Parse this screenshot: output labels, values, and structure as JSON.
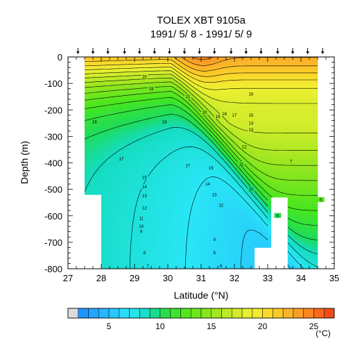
{
  "chart_data": {
    "type": "heatmap",
    "title": "TOLEX XBT 9105a",
    "subtitle": "1991/ 5/ 8 - 1991/ 5/ 9",
    "xlabel": "Latitude (°N)",
    "ylabel": "Depth (m)",
    "xlim": [
      27,
      35
    ],
    "ylim": [
      -800,
      0
    ],
    "x_ticks": [
      27,
      28,
      29,
      30,
      31,
      32,
      33,
      34,
      35
    ],
    "y_ticks": [
      0,
      -100,
      -200,
      -300,
      -400,
      -500,
      -600,
      -700,
      -800
    ],
    "x_tick_labels": [
      "27",
      "28",
      "29",
      "30",
      "31",
      "32",
      "33",
      "34",
      "35"
    ],
    "y_tick_labels": [
      "0",
      "-100",
      "-200",
      "-300",
      "-400",
      "-500",
      "-600",
      "-700",
      "-800"
    ],
    "station_latitudes": [
      27.3,
      27.75,
      28.2,
      28.7,
      29.15,
      29.6,
      30.05,
      30.5,
      30.95,
      31.4,
      31.9,
      32.35,
      32.8,
      33.3,
      33.75,
      34.2,
      34.65
    ],
    "colorbar": {
      "unit": "(°C)",
      "min": 2,
      "max": 27,
      "tick_values": [
        5,
        10,
        15,
        20,
        25
      ],
      "tick_labels": [
        "5",
        "10",
        "15",
        "20",
        "25"
      ],
      "missing_color": "#dcdcdc"
    },
    "contour_labels": [
      {
        "lat": 29.3,
        "depth": -75,
        "label": "20"
      },
      {
        "lat": 29.5,
        "depth": -120,
        "label": "19"
      },
      {
        "lat": 27.8,
        "depth": -245,
        "label": "18"
      },
      {
        "lat": 29.9,
        "depth": -245,
        "label": "18"
      },
      {
        "lat": 28.6,
        "depth": -385,
        "label": "17"
      },
      {
        "lat": 30.6,
        "depth": -410,
        "label": "17"
      },
      {
        "lat": 30.6,
        "depth": -150,
        "label": "21"
      },
      {
        "lat": 31.1,
        "depth": -210,
        "label": "20"
      },
      {
        "lat": 31.5,
        "depth": -225,
        "label": "19"
      },
      {
        "lat": 31.7,
        "depth": -215,
        "label": "18"
      },
      {
        "lat": 32.0,
        "depth": -220,
        "label": "17"
      },
      {
        "lat": 32.5,
        "depth": -140,
        "label": "16"
      },
      {
        "lat": 32.5,
        "depth": -220,
        "label": "15"
      },
      {
        "lat": 32.5,
        "depth": -250,
        "label": "14"
      },
      {
        "lat": 32.5,
        "depth": -275,
        "label": "13"
      },
      {
        "lat": 32.3,
        "depth": -340,
        "label": "12"
      },
      {
        "lat": 32.2,
        "depth": -405,
        "label": "11"
      },
      {
        "lat": 32.5,
        "depth": -500,
        "label": "10"
      },
      {
        "lat": 29.3,
        "depth": -455,
        "label": "15"
      },
      {
        "lat": 29.3,
        "depth": -490,
        "label": "14"
      },
      {
        "lat": 29.3,
        "depth": -525,
        "label": "13"
      },
      {
        "lat": 29.3,
        "depth": -570,
        "label": "12"
      },
      {
        "lat": 29.2,
        "depth": -610,
        "label": "11"
      },
      {
        "lat": 29.2,
        "depth": -640,
        "label": "10"
      },
      {
        "lat": 29.2,
        "depth": -660,
        "label": "9"
      },
      {
        "lat": 29.3,
        "depth": -740,
        "label": "8"
      },
      {
        "lat": 29.4,
        "depth": -790,
        "label": "7"
      },
      {
        "lat": 31.3,
        "depth": -420,
        "label": "15"
      },
      {
        "lat": 31.2,
        "depth": -480,
        "label": "14"
      },
      {
        "lat": 31.4,
        "depth": -520,
        "label": "13"
      },
      {
        "lat": 31.6,
        "depth": -560,
        "label": "12"
      },
      {
        "lat": 31.4,
        "depth": -690,
        "label": "9"
      },
      {
        "lat": 31.4,
        "depth": -740,
        "label": "8"
      },
      {
        "lat": 31.6,
        "depth": -790,
        "label": "6"
      },
      {
        "lat": 33.7,
        "depth": -395,
        "label": "7"
      },
      {
        "lat": 33.3,
        "depth": -600,
        "label": "6"
      },
      {
        "lat": 34.6,
        "depth": -540,
        "label": "5"
      }
    ]
  }
}
